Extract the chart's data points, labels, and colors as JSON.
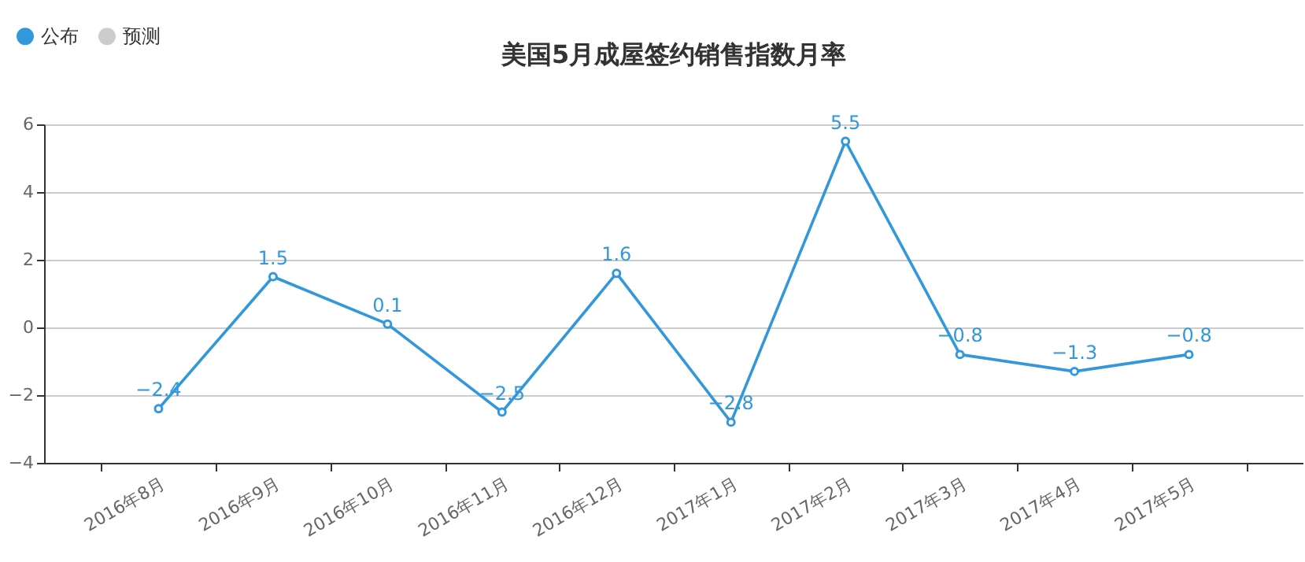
{
  "chart_data": {
    "type": "line",
    "title": "美国5月成屋签约销售指数月率",
    "categories": [
      "2016年8月",
      "2016年9月",
      "2016年10月",
      "2016年11月",
      "2016年12月",
      "2017年1月",
      "2017年2月",
      "2017年3月",
      "2017年4月",
      "2017年5月"
    ],
    "series": [
      {
        "name": "公布",
        "color": "#3398db",
        "values": [
          -2.4,
          1.5,
          0.1,
          -2.5,
          1.6,
          -2.8,
          5.5,
          -0.8,
          -1.3,
          -0.8
        ]
      },
      {
        "name": "预测",
        "color": "#cccccc",
        "values": [
          null,
          null,
          null,
          null,
          null,
          null,
          null,
          null,
          null,
          null
        ]
      }
    ],
    "ylim": [
      -4,
      6
    ],
    "yticks": [
      -4,
      -2,
      0,
      2,
      4,
      6
    ],
    "grid": "y",
    "legend": "top left",
    "marker": "circle",
    "data_labels": true
  }
}
